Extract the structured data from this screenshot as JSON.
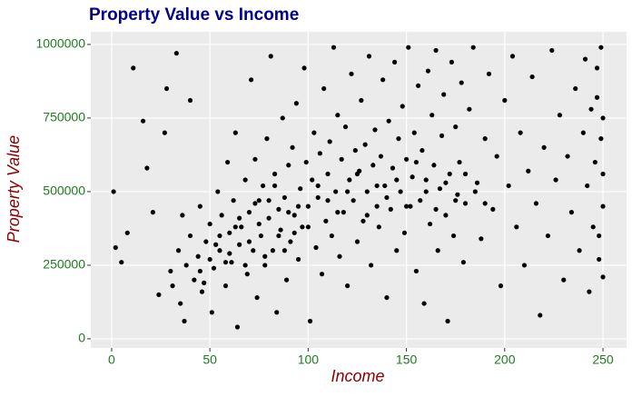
{
  "chart_data": {
    "type": "scatter",
    "title": "Property Value vs Income",
    "x_label": "Income",
    "y_label": "Property Value",
    "color": "#000000",
    "background": "#EBEBEB",
    "grid": true,
    "xlim": [
      -10.6,
      262
    ],
    "ylim": [
      -31000,
      1043000
    ],
    "xticks": [
      0,
      50,
      100,
      150,
      200,
      250
    ],
    "yticks": [
      0,
      250000,
      500000,
      750000,
      1000000
    ],
    "x": [
      1,
      2,
      5,
      8,
      11,
      16,
      18,
      21,
      24,
      27,
      28,
      30,
      31,
      33,
      34,
      35,
      36,
      37,
      38,
      40,
      40,
      42,
      44,
      45,
      46,
      48,
      50,
      51,
      52,
      54,
      55,
      56,
      58,
      59,
      60,
      61,
      62,
      63,
      64,
      65,
      66,
      68,
      69,
      70,
      71,
      72,
      73,
      74,
      75,
      76,
      77,
      78,
      79,
      80,
      81,
      82,
      83,
      84,
      85,
      86,
      87,
      88,
      89,
      90,
      91,
      92,
      93,
      94,
      95,
      96,
      97,
      98,
      99,
      100,
      101,
      102,
      103,
      104,
      105,
      106,
      107,
      108,
      109,
      110,
      111,
      112,
      113,
      114,
      115,
      116,
      117,
      118,
      119,
      120,
      121,
      122,
      123,
      124,
      125,
      126,
      127,
      128,
      129,
      130,
      131,
      132,
      133,
      134,
      135,
      136,
      137,
      138,
      139,
      140,
      141,
      142,
      143,
      144,
      145,
      146,
      147,
      148,
      149,
      150,
      151,
      152,
      153,
      154,
      155,
      156,
      157,
      158,
      159,
      160,
      161,
      162,
      163,
      164,
      165,
      166,
      167,
      168,
      169,
      170,
      171,
      172,
      173,
      174,
      175,
      176,
      177,
      178,
      179,
      180,
      182,
      184,
      186,
      188,
      190,
      192,
      194,
      196,
      198,
      200,
      202,
      204,
      206,
      208,
      210,
      212,
      214,
      216,
      218,
      220,
      222,
      224,
      226,
      228,
      230,
      232,
      234,
      236,
      238,
      240,
      241,
      242,
      243,
      244,
      245,
      246,
      247,
      248,
      249,
      250,
      250,
      249,
      248,
      250,
      247,
      250,
      45,
      50,
      55,
      60,
      65,
      70,
      75,
      80,
      85,
      90,
      95,
      100,
      105,
      110,
      115,
      120,
      125,
      130,
      135,
      140,
      145,
      150,
      155,
      160,
      165,
      170,
      175,
      180,
      185,
      190,
      47,
      53,
      58,
      63,
      68,
      73,
      78,
      83,
      88,
      93
    ],
    "y": [
      500000,
      310000,
      260000,
      360000,
      920000,
      740000,
      580000,
      430000,
      150000,
      700000,
      850000,
      230000,
      180000,
      970000,
      300000,
      120000,
      420000,
      60000,
      250000,
      810000,
      350000,
      200000,
      280000,
      450000,
      160000,
      330000,
      390000,
      90000,
      240000,
      500000,
      300000,
      420000,
      180000,
      600000,
      360000,
      260000,
      470000,
      700000,
      40000,
      320000,
      380000,
      540000,
      220000,
      430000,
      880000,
      300000,
      610000,
      140000,
      470000,
      350000,
      520000,
      250000,
      680000,
      410000,
      960000,
      300000,
      560000,
      90000,
      440000,
      370000,
      750000,
      480000,
      200000,
      590000,
      330000,
      650000,
      420000,
      800000,
      270000,
      510000,
      380000,
      920000,
      600000,
      450000,
      60000,
      540000,
      700000,
      310000,
      480000,
      630000,
      220000,
      850000,
      400000,
      560000,
      670000,
      350000,
      990000,
      500000,
      760000,
      280000,
      610000,
      430000,
      720000,
      180000,
      540000,
      900000,
      470000,
      640000,
      330000,
      570000,
      810000,
      400000,
      660000,
      500000,
      960000,
      250000,
      590000,
      710000,
      450000,
      380000,
      620000,
      880000,
      520000,
      140000,
      740000,
      440000,
      580000,
      940000,
      300000,
      680000,
      500000,
      790000,
      360000,
      610000,
      990000,
      450000,
      550000,
      700000,
      230000,
      860000,
      470000,
      640000,
      120000,
      540000,
      910000,
      390000,
      760000,
      590000,
      980000,
      300000,
      510000,
      690000,
      830000,
      420000,
      60000,
      560000,
      940000,
      350000,
      720000,
      490000,
      600000,
      870000,
      260000,
      460000,
      780000,
      990000,
      530000,
      340000,
      680000,
      900000,
      440000,
      620000,
      180000,
      810000,
      520000,
      960000,
      380000,
      700000,
      250000,
      570000,
      890000,
      460000,
      80000,
      650000,
      350000,
      980000,
      540000,
      760000,
      200000,
      620000,
      430000,
      850000,
      300000,
      700000,
      950000,
      520000,
      160000,
      780000,
      380000,
      600000,
      920000,
      270000,
      680000,
      450000,
      750000,
      990000,
      350000,
      560000,
      820000,
      210000,
      230000,
      270000,
      350000,
      290000,
      410000,
      330000,
      390000,
      470000,
      350000,
      430000,
      450000,
      380000,
      520000,
      470000,
      430000,
      500000,
      560000,
      420000,
      520000,
      480000,
      540000,
      450000,
      600000,
      500000,
      440000,
      530000,
      470000,
      560000,
      500000,
      460000,
      190000,
      320000,
      260000,
      380000,
      250000,
      460000,
      280000,
      520000,
      300000,
      360000
    ]
  }
}
